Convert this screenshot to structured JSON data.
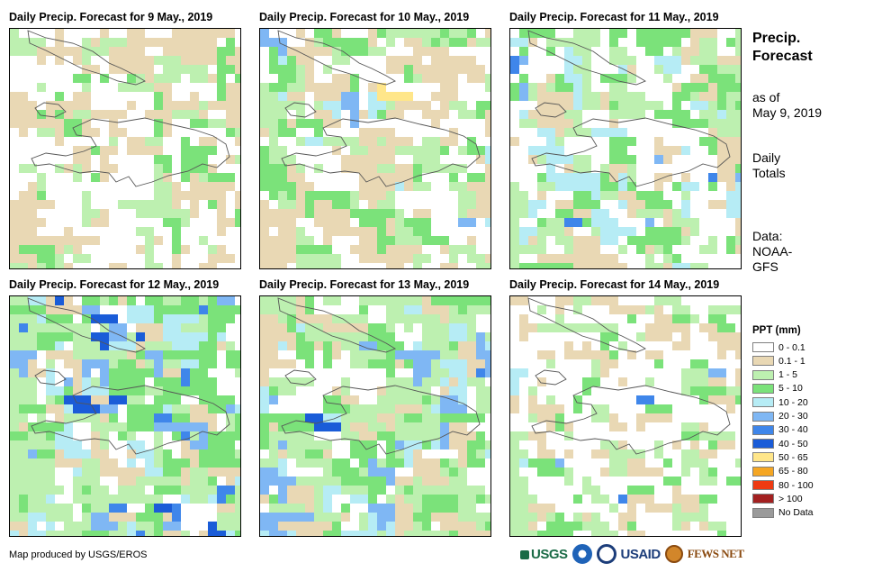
{
  "panels": [
    {
      "title": "Daily Precip. Forecast for 9 May., 2019"
    },
    {
      "title": "Daily Precip. Forecast for 10 May., 2019"
    },
    {
      "title": "Daily Precip. Forecast for 11 May., 2019"
    },
    {
      "title": "Daily Precip. Forecast for 12 May., 2019"
    },
    {
      "title": "Daily Precip. Forecast for 13 May., 2019"
    },
    {
      "title": "Daily Precip. Forecast for 14 May., 2019"
    }
  ],
  "side_info": {
    "title_line1": "Precip.",
    "title_line2": "Forecast",
    "asof_line1": "as of",
    "asof_line2": "May 9, 2019",
    "totals_line1": "Daily",
    "totals_line2": "Totals",
    "data_line1": "Data:",
    "data_line2": "NOAA-",
    "data_line3": "GFS"
  },
  "legend": {
    "title": "PPT (mm)",
    "classes": [
      {
        "label": "0 - 0.1",
        "color": "#ffffff"
      },
      {
        "label": "0.1 - 1",
        "color": "#e9d8b4"
      },
      {
        "label": "1 - 5",
        "color": "#bdf0b0"
      },
      {
        "label": "5 - 10",
        "color": "#7be27a"
      },
      {
        "label": "10 - 20",
        "color": "#b6ecf5"
      },
      {
        "label": "20 - 30",
        "color": "#7fb7f4"
      },
      {
        "label": "30 - 40",
        "color": "#3f86ea"
      },
      {
        "label": "40 - 50",
        "color": "#1a5cd8"
      },
      {
        "label": "50 - 65",
        "color": "#ffe68a"
      },
      {
        "label": "65 - 80",
        "color": "#f5a623"
      },
      {
        "label": "80 - 100",
        "color": "#ee3a12"
      },
      {
        "label": "> 100",
        "color": "#a32020"
      },
      {
        "label": "No Data",
        "color": "#9a9a9a"
      }
    ]
  },
  "credit": "Map produced by USGS/EROS",
  "logos": {
    "usgs": "USGS",
    "usaid": "USAID",
    "fewsnet": "FEWS NET"
  }
}
